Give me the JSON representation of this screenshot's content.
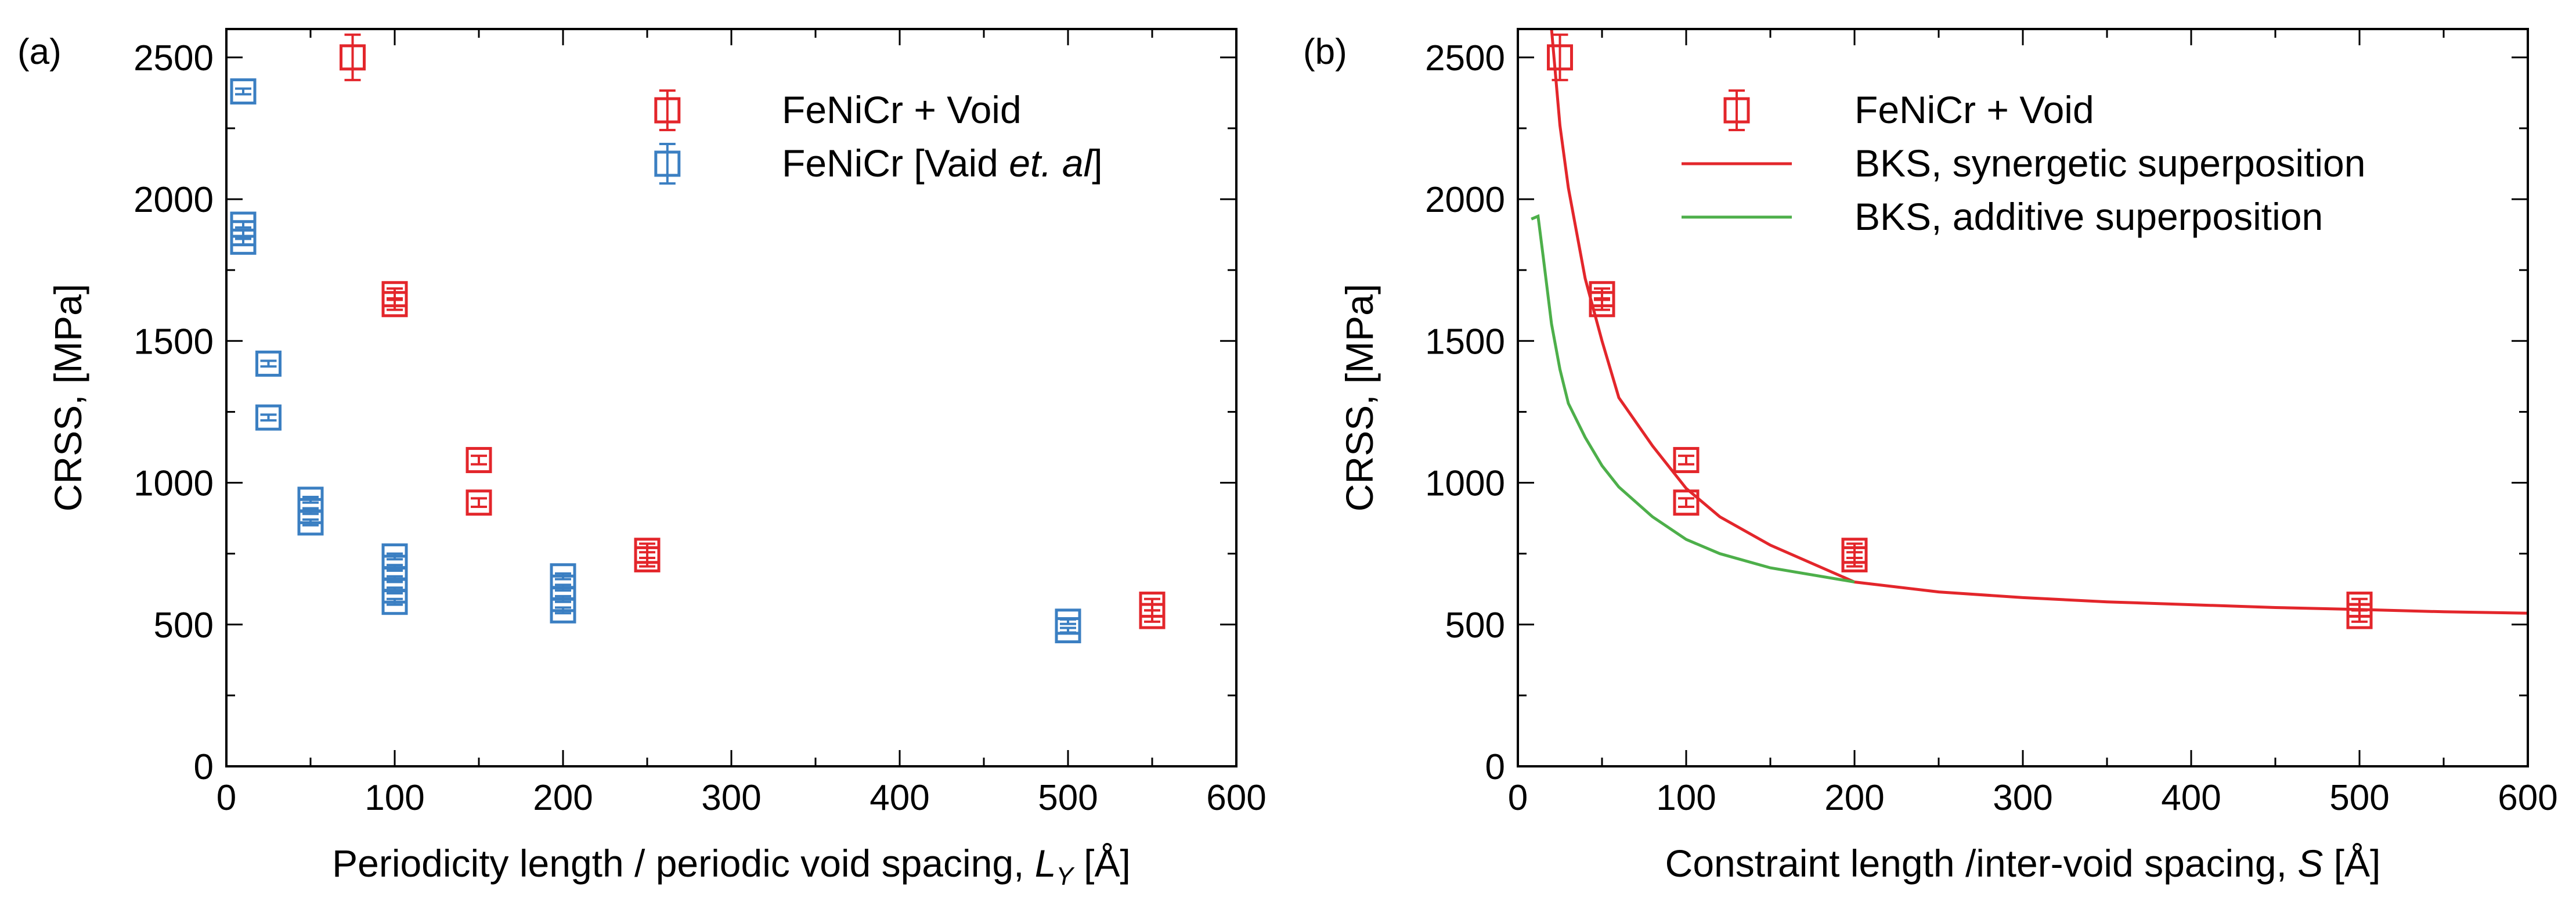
{
  "colors": {
    "red": "#e3262b",
    "blue": "#3b7fc2",
    "green": "#4daf4a",
    "axis": "#000000"
  },
  "chart_data": [
    {
      "type": "scatter",
      "panel": "(a)",
      "xlabel_text": "Periodicity length / periodic void spacing, ",
      "xlabel_var": "L",
      "xlabel_sub": "Y",
      "xlabel_unit": " [Å]",
      "ylabel": "CRSS,  [MPa]",
      "xlim": [
        0,
        600
      ],
      "ylim": [
        0,
        2600
      ],
      "xticks": [
        0,
        100,
        200,
        300,
        400,
        500,
        600
      ],
      "yticks": [
        0,
        500,
        1000,
        1500,
        2000,
        2500
      ],
      "xtick_labels": [
        "0",
        "100",
        "200",
        "300",
        "400",
        "500",
        "600"
      ],
      "ytick_labels": [
        "0",
        "500",
        "1000",
        "1500",
        "2000",
        "2500"
      ],
      "legend_position": "top-right",
      "series": [
        {
          "name": "FeNiCr + Void",
          "legend_main": "FeNiCr + Void",
          "color_key": "red",
          "points": [
            {
              "x": 75,
              "y": 2500,
              "err": 80
            },
            {
              "x": 100,
              "y": 1665,
              "err": 20
            },
            {
              "x": 100,
              "y": 1630,
              "err": 20
            },
            {
              "x": 150,
              "y": 1080,
              "err": 15
            },
            {
              "x": 150,
              "y": 930,
              "err": 15
            },
            {
              "x": 250,
              "y": 760,
              "err": 25
            },
            {
              "x": 250,
              "y": 730,
              "err": 25
            },
            {
              "x": 550,
              "y": 570,
              "err": 20
            },
            {
              "x": 550,
              "y": 530,
              "err": 20
            }
          ]
        },
        {
          "name": "FeNiCr [Vaid et. al]",
          "legend_main": "FeNiCr [Vaid ",
          "legend_italic": "et. al",
          "legend_end": "]",
          "color_key": "blue",
          "points": [
            {
              "x": 10,
              "y": 2380,
              "err": 10
            },
            {
              "x": 10,
              "y": 1910,
              "err": 10
            },
            {
              "x": 10,
              "y": 1880,
              "err": 10
            },
            {
              "x": 10,
              "y": 1850,
              "err": 10
            },
            {
              "x": 25,
              "y": 1420,
              "err": 10
            },
            {
              "x": 25,
              "y": 1230,
              "err": 10
            },
            {
              "x": 50,
              "y": 940,
              "err": 10
            },
            {
              "x": 50,
              "y": 900,
              "err": 10
            },
            {
              "x": 50,
              "y": 860,
              "err": 10
            },
            {
              "x": 100,
              "y": 740,
              "err": 10
            },
            {
              "x": 100,
              "y": 700,
              "err": 10
            },
            {
              "x": 100,
              "y": 660,
              "err": 10
            },
            {
              "x": 100,
              "y": 620,
              "err": 10
            },
            {
              "x": 100,
              "y": 580,
              "err": 10
            },
            {
              "x": 200,
              "y": 670,
              "err": 10
            },
            {
              "x": 200,
              "y": 630,
              "err": 10
            },
            {
              "x": 200,
              "y": 590,
              "err": 10
            },
            {
              "x": 200,
              "y": 550,
              "err": 10
            },
            {
              "x": 500,
              "y": 510,
              "err": 8
            },
            {
              "x": 500,
              "y": 480,
              "err": 8
            }
          ]
        }
      ]
    },
    {
      "type": "scatter",
      "panel": "(b)",
      "xlabel_text": "Constraint length /inter-void spacing, ",
      "xlabel_var": "S",
      "xlabel_sub": "",
      "xlabel_unit": " [Å]",
      "ylabel": "CRSS,  [MPa]",
      "xlim": [
        0,
        600
      ],
      "ylim": [
        0,
        2600
      ],
      "xticks": [
        0,
        100,
        200,
        300,
        400,
        500,
        600
      ],
      "yticks": [
        0,
        500,
        1000,
        1500,
        2000,
        2500
      ],
      "xtick_labels": [
        "0",
        "100",
        "200",
        "300",
        "400",
        "500",
        "600"
      ],
      "ytick_labels": [
        "0",
        "500",
        "1000",
        "1500",
        "2000",
        "2500"
      ],
      "legend_position": "top-right",
      "series": [
        {
          "name": "FeNiCr + Void",
          "legend_main": "FeNiCr + Void",
          "color_key": "red",
          "points": [
            {
              "x": 25,
              "y": 2500,
              "err": 80
            },
            {
              "x": 50,
              "y": 1665,
              "err": 20
            },
            {
              "x": 50,
              "y": 1630,
              "err": 20
            },
            {
              "x": 100,
              "y": 1080,
              "err": 15
            },
            {
              "x": 100,
              "y": 930,
              "err": 15
            },
            {
              "x": 200,
              "y": 760,
              "err": 25
            },
            {
              "x": 200,
              "y": 730,
              "err": 25
            },
            {
              "x": 500,
              "y": 570,
              "err": 20
            },
            {
              "x": 500,
              "y": 530,
              "err": 20
            }
          ]
        }
      ],
      "lines": [
        {
          "name": "BKS, synergetic superposition",
          "color_key": "red",
          "x": [
            20,
            25,
            30,
            40,
            50,
            60,
            80,
            100,
            120,
            150,
            200,
            250,
            300,
            350,
            400,
            450,
            500,
            550,
            600
          ],
          "y": [
            2600,
            2260,
            2040,
            1720,
            1500,
            1300,
            1130,
            980,
            880,
            780,
            650,
            615,
            595,
            580,
            570,
            560,
            553,
            545,
            540
          ]
        },
        {
          "name": "BKS, additive superposition",
          "color_key": "green",
          "x": [
            8,
            12,
            15,
            20,
            25,
            30,
            40,
            50,
            60,
            80,
            100,
            120,
            150,
            200
          ],
          "y": [
            1930,
            1940,
            1800,
            1560,
            1400,
            1280,
            1160,
            1060,
            985,
            880,
            800,
            750,
            700,
            650
          ]
        }
      ]
    }
  ]
}
